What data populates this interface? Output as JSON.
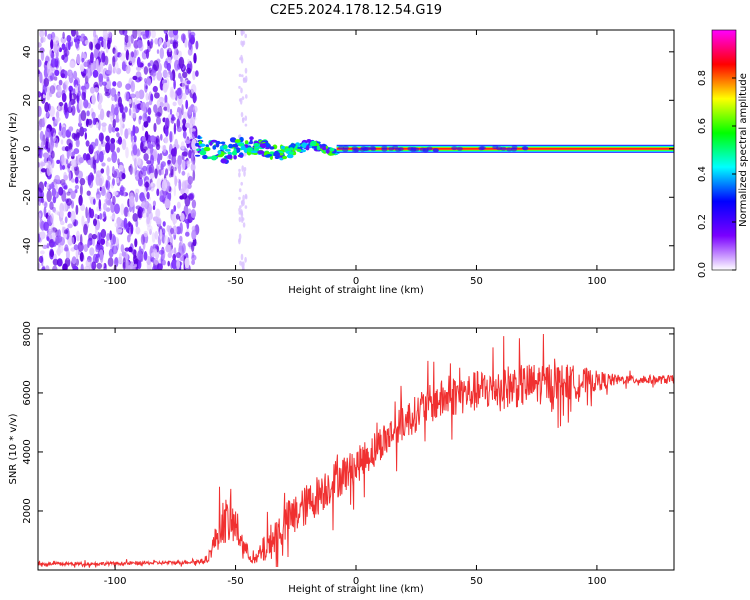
{
  "title": "C2E5.2024.178.12.54.G19",
  "chart_data": [
    {
      "type": "heatmap",
      "xlabel": "Height of straight line (km)",
      "ylabel": "Frequency (Hz)",
      "xlim": [
        -132,
        132
      ],
      "ylim": [
        -50,
        49
      ],
      "xticks": [
        -100,
        -50,
        0,
        50,
        100
      ],
      "yticks": [
        40,
        20,
        0,
        -20,
        -40
      ],
      "colorbar": {
        "label": "Normalized spectral amplitude",
        "range": [
          0,
          1
        ],
        "ticks": [
          "0.0",
          "0.2",
          "0.4",
          "0.6",
          "0.8"
        ],
        "stops": [
          "#ffffff",
          "#7a00ff",
          "#0000ff",
          "#00ffff",
          "#00ff00",
          "#ffff00",
          "#ff0000",
          "#ff00ff"
        ]
      },
      "description_data": {
        "noise_region_x": [
          -132,
          -66
        ],
        "transition_region_x": [
          -66,
          -8
        ],
        "carrier_frequency": 0,
        "carrier_x": [
          -8,
          132
        ]
      },
      "grid": false
    },
    {
      "type": "line",
      "xlabel": "Height of straight line (km)",
      "ylabel": "SNR (10 * v/v)",
      "xlim": [
        -132,
        132
      ],
      "ylim": [
        0,
        8200
      ],
      "xticks": [
        -100,
        -50,
        0,
        50,
        100
      ],
      "yticks": [
        8000,
        6000,
        4000,
        2000
      ],
      "series": [
        {
          "color": "#f03030",
          "envelope": {
            "x": [
              -132,
              -100,
              -75,
              -62,
              -55,
              -50,
              -46,
              -42,
              -38,
              -33,
              -28,
              -22,
              -15,
              -8,
              0,
              10,
              20,
              30,
              40,
              50,
              60,
              70,
              80,
              90,
              100,
              110,
              120,
              132
            ],
            "y": [
              200,
              220,
              250,
              300,
              1700,
              1500,
              700,
              300,
              700,
              1200,
              1700,
              2100,
              2600,
              3100,
              3500,
              4300,
              5000,
              5600,
              5900,
              6050,
              6200,
              6250,
              6350,
              6350,
              6400,
              6450,
              6450,
              6450
            ],
            "noise": [
              60,
              60,
              60,
              80,
              800,
              700,
              300,
              150,
              500,
              700,
              700,
              700,
              700,
              700,
              600,
              600,
              600,
              650,
              700,
              700,
              750,
              750,
              700,
              600,
              350,
              150,
              150,
              150
            ]
          }
        }
      ],
      "grid": false
    }
  ]
}
